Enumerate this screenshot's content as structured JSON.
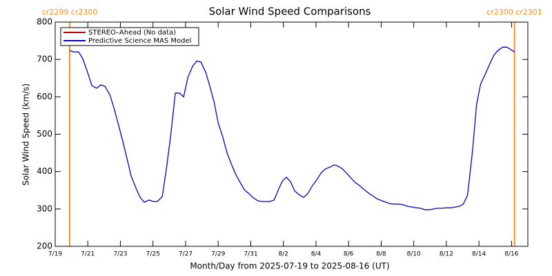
{
  "chart_data": {
    "type": "line",
    "title": "Solar Wind Speed Comparisons",
    "xlabel": "Month/Day from 2025-07-19 to 2025-08-16 (UT)",
    "ylabel": "Solar Wind Speed (km/s)",
    "xlim": [
      0,
      29
    ],
    "xticks": [
      {
        "value": 0,
        "label": "7/19"
      },
      {
        "value": 2,
        "label": "7/21"
      },
      {
        "value": 4,
        "label": "7/23"
      },
      {
        "value": 6,
        "label": "7/25"
      },
      {
        "value": 8,
        "label": "7/27"
      },
      {
        "value": 10,
        "label": "7/29"
      },
      {
        "value": 12,
        "label": "7/31"
      },
      {
        "value": 14,
        "label": "8/2"
      },
      {
        "value": 16,
        "label": "8/4"
      },
      {
        "value": 18,
        "label": "8/6"
      },
      {
        "value": 20,
        "label": "8/8"
      },
      {
        "value": 22,
        "label": "8/10"
      },
      {
        "value": 24,
        "label": "8/12"
      },
      {
        "value": 26,
        "label": "8/14"
      },
      {
        "value": 28,
        "label": "8/16"
      }
    ],
    "ylim": [
      200,
      800
    ],
    "yticks": [
      200,
      300,
      400,
      500,
      600,
      700,
      800
    ],
    "legend": "upper left",
    "markers_color": "#ff9020",
    "markers": [
      {
        "x": 0.89,
        "label": "cr2299 cr2300"
      },
      {
        "x": 28.18,
        "label": "cr2300 cr2301"
      }
    ],
    "series": [
      {
        "name": "STEREO–Ahead (No data)",
        "color": "#c00000",
        "x": [],
        "values": []
      },
      {
        "name": "Predictive Science MAS Model",
        "color": "#0000c0",
        "x": [
          0.89,
          1.14,
          1.44,
          1.69,
          1.99,
          2.25,
          2.54,
          2.8,
          3.05,
          3.35,
          3.6,
          3.86,
          4.15,
          4.41,
          4.66,
          4.96,
          5.21,
          5.47,
          5.76,
          6.02,
          6.27,
          6.57,
          6.82,
          7.08,
          7.37,
          7.63,
          7.88,
          8.14,
          8.43,
          8.69,
          8.94,
          9.24,
          9.49,
          9.75,
          10.0,
          10.3,
          10.55,
          10.81,
          11.06,
          11.36,
          11.61,
          11.86,
          12.12,
          12.42,
          12.67,
          12.92,
          13.18,
          13.43,
          13.69,
          13.94,
          14.19,
          14.45,
          14.7,
          15.0,
          15.25,
          15.51,
          15.76,
          16.06,
          16.31,
          16.57,
          16.86,
          17.12,
          17.37,
          17.63,
          17.92,
          18.18,
          18.43,
          18.69,
          18.98,
          19.24,
          19.49,
          19.75,
          20.04,
          20.3,
          20.55,
          20.81,
          21.1,
          21.36,
          21.61,
          21.91,
          22.16,
          22.42,
          22.67,
          22.97,
          23.22,
          23.47,
          23.73,
          24.03,
          24.28,
          24.53,
          24.79,
          25.04,
          25.3,
          25.59,
          25.85,
          26.1,
          26.4,
          26.65,
          26.91,
          27.16,
          27.46,
          27.71,
          27.97,
          28.18
        ],
        "values": [
          724,
          720,
          720,
          702,
          665,
          630,
          623,
          632,
          628,
          606,
          571,
          529,
          481,
          434,
          388,
          355,
          331,
          318,
          324,
          320,
          320,
          333,
          407,
          494,
          610,
          610,
          600,
          652,
          682,
          696,
          693,
          665,
          628,
          586,
          530,
          490,
          449,
          420,
          394,
          370,
          351,
          342,
          331,
          322,
          320,
          320,
          320,
          324,
          351,
          375,
          385,
          372,
          348,
          337,
          331,
          342,
          361,
          379,
          396,
          407,
          412,
          418,
          414,
          407,
          394,
          381,
          370,
          362,
          351,
          342,
          335,
          327,
          322,
          318,
          314,
          313,
          313,
          311,
          307,
          305,
          303,
          302,
          298,
          298,
          300,
          302,
          302,
          303,
          303,
          305,
          307,
          313,
          337,
          449,
          578,
          634,
          662,
          687,
          711,
          724,
          733,
          733,
          726,
          720
        ]
      }
    ]
  }
}
